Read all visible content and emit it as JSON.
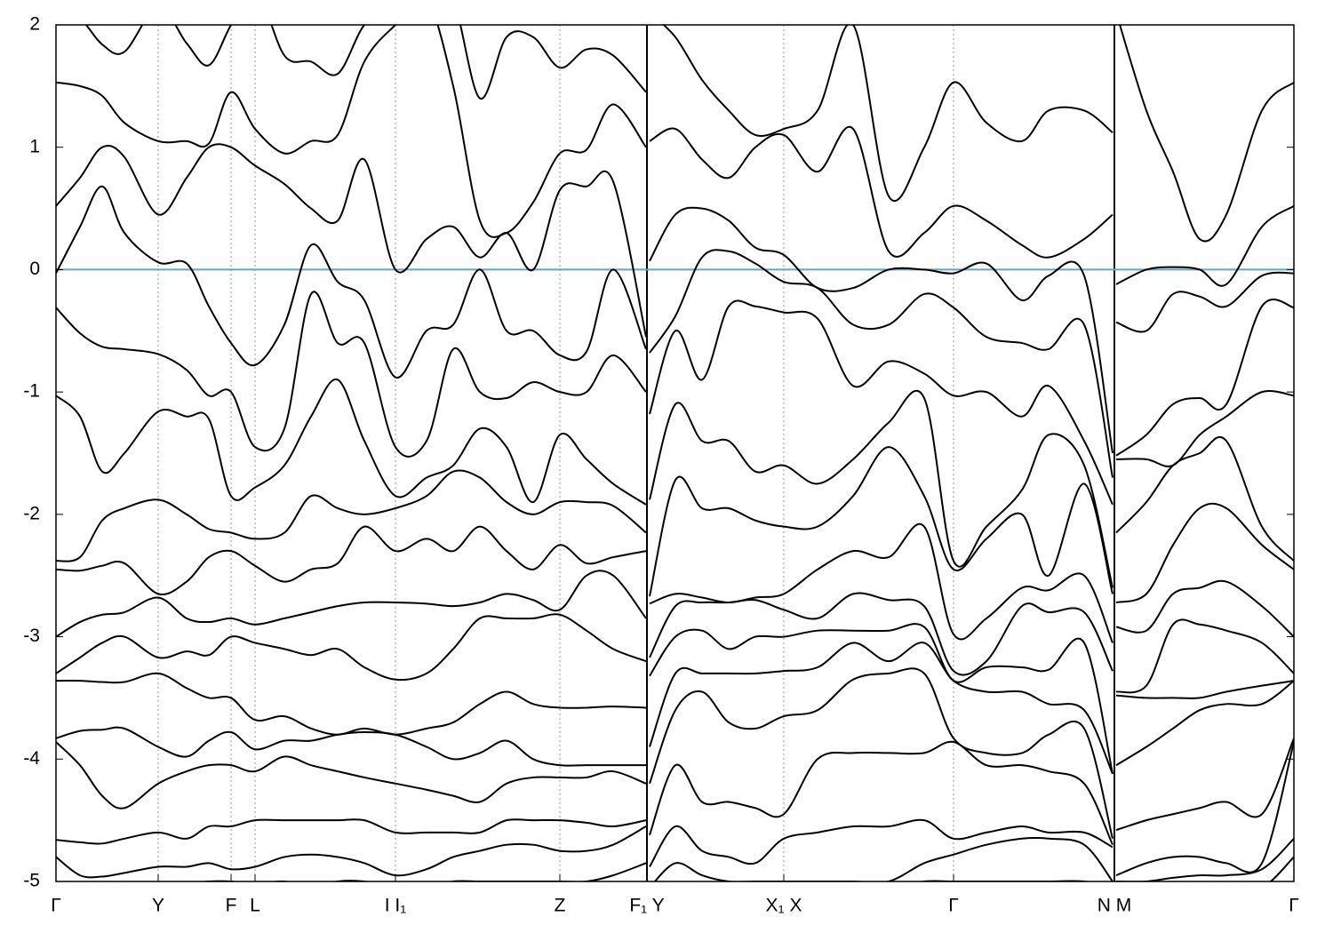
{
  "chart_data": {
    "type": "line",
    "x": [
      0,
      0.27,
      0.52,
      0.77,
      1.15,
      1.47,
      1.72,
      1.97,
      2.24,
      2.57,
      2.87,
      3.17,
      3.47,
      3.82,
      4.17,
      4.47,
      4.77,
      5.07,
      5.37,
      5.67,
      5.97,
      6.27,
      6.64,
      6.65,
      6.68,
      6.97,
      7.27,
      7.57,
      7.87,
      8.19,
      8.57,
      8.97,
      9.37,
      9.77,
      10.1,
      10.47,
      10.87,
      11.17,
      11.57,
      11.89,
      11.91,
      11.93,
      12.27,
      12.57,
      12.87,
      13.17,
      13.57,
      13.93
    ],
    "series": [
      {
        "color": "#000000",
        "values": [
          2.1,
          2.05,
          1.84,
          1.78,
          2.15,
          1.85,
          1.67,
          2.0,
          2.3,
          1.75,
          1.7,
          1.6,
          2.0,
          2.2,
          2.3,
          2.2,
          1.4,
          1.9,
          1.9,
          1.65,
          1.8,
          1.75,
          1.45,
          null,
          2.1,
          1.9,
          1.55,
          1.3,
          1.1,
          1.15,
          1.3,
          2.0,
          0.6,
          1.0,
          1.53,
          1.2,
          1.05,
          1.3,
          1.3,
          1.12,
          null,
          2.1,
          1.3,
          0.8,
          0.25,
          0.45,
          1.3,
          1.53
        ]
      },
      {
        "color": "#000000",
        "values": [
          1.53,
          1.5,
          1.42,
          1.2,
          1.05,
          1.05,
          1.03,
          1.45,
          1.15,
          0.95,
          1.05,
          1.1,
          1.7,
          2.0,
          2.2,
          1.5,
          0.4,
          0.3,
          0.55,
          0.95,
          0.98,
          1.35,
          1.0,
          null,
          1.05,
          1.15,
          0.9,
          0.75,
          1.0,
          1.1,
          0.8,
          1.15,
          0.15,
          0.3,
          0.52,
          0.4,
          0.2,
          0.1,
          0.25,
          0.45,
          null,
          -0.12,
          0.0,
          0.02,
          0.0,
          -0.12,
          0.35,
          0.52
        ]
      },
      {
        "color": "#000000",
        "values": [
          0.52,
          0.75,
          1.0,
          0.92,
          0.45,
          0.75,
          1.0,
          1.0,
          0.85,
          0.7,
          0.5,
          0.4,
          0.9,
          0.0,
          0.25,
          0.35,
          0.1,
          0.3,
          0.0,
          0.65,
          0.68,
          0.72,
          -0.55,
          null,
          0.07,
          0.45,
          0.5,
          0.4,
          0.18,
          0.12,
          -0.15,
          -0.15,
          0.0,
          0.0,
          -0.03,
          0.05,
          -0.25,
          -0.05,
          -0.05,
          -1.5,
          null,
          -0.43,
          -0.5,
          -0.2,
          -0.22,
          -0.3,
          -0.05,
          -0.03
        ]
      },
      {
        "color": "#000000",
        "values": [
          -0.03,
          0.35,
          0.68,
          0.3,
          0.06,
          0.05,
          -0.3,
          -0.6,
          -0.78,
          -0.45,
          0.2,
          -0.1,
          -0.25,
          -0.88,
          -0.5,
          -0.45,
          0.0,
          -0.5,
          -0.5,
          -0.7,
          -0.67,
          0.0,
          -0.65,
          null,
          -0.68,
          -0.38,
          0.1,
          0.15,
          0.05,
          -0.1,
          -0.15,
          -0.45,
          -0.45,
          -0.2,
          -0.31,
          -0.55,
          -0.6,
          -0.65,
          -0.45,
          -1.7,
          null,
          -1.52,
          -1.35,
          -1.1,
          -1.05,
          -1.1,
          -0.3,
          -0.31
        ]
      },
      {
        "color": "#000000",
        "values": [
          -0.31,
          -0.52,
          -0.63,
          -0.65,
          -0.69,
          -0.82,
          -1.03,
          -1.0,
          -1.45,
          -1.3,
          -0.2,
          -0.6,
          -0.6,
          -1.45,
          -1.4,
          -0.65,
          -1.0,
          -1.05,
          -0.92,
          -1.0,
          -1.0,
          -0.7,
          -1.0,
          null,
          -1.18,
          -0.5,
          -0.9,
          -0.3,
          -0.3,
          -0.35,
          -0.4,
          -0.95,
          -0.75,
          -0.85,
          -1.03,
          -1.0,
          -1.2,
          -0.95,
          -1.4,
          -1.92,
          null,
          -1.55,
          -1.55,
          -1.6,
          -1.35,
          -1.2,
          -1.0,
          -1.03
        ]
      },
      {
        "color": "#000000",
        "values": [
          -1.03,
          -1.2,
          -1.65,
          -1.5,
          -1.16,
          -1.2,
          -1.22,
          -1.85,
          -1.78,
          -1.6,
          -1.2,
          -0.9,
          -1.4,
          -1.85,
          -1.7,
          -1.6,
          -1.3,
          -1.45,
          -1.9,
          -1.35,
          -1.55,
          -1.75,
          -1.92,
          null,
          -1.88,
          -1.1,
          -1.4,
          -1.4,
          -1.65,
          -1.6,
          -1.75,
          -1.55,
          -1.25,
          -1.05,
          -2.38,
          -2.1,
          -1.8,
          -1.35,
          -1.6,
          -2.6,
          null,
          -2.15,
          -1.9,
          -1.6,
          -1.5,
          -1.4,
          -2.1,
          -2.38
        ]
      },
      {
        "color": "#000000",
        "values": [
          -2.38,
          -2.35,
          -2.05,
          -1.95,
          -1.88,
          -2.0,
          -2.12,
          -2.15,
          -2.2,
          -2.15,
          -1.85,
          -1.95,
          -2.0,
          -1.95,
          -1.85,
          -1.65,
          -1.7,
          -1.9,
          -2.0,
          -1.9,
          -1.9,
          -1.93,
          -2.15,
          null,
          -2.67,
          -1.72,
          -1.95,
          -1.95,
          -2.05,
          -2.1,
          -2.1,
          -1.85,
          -1.45,
          -1.85,
          -2.45,
          -2.2,
          -2.0,
          -2.5,
          -1.75,
          -2.65,
          null,
          -2.72,
          -2.65,
          -2.25,
          -1.95,
          -1.95,
          -2.25,
          -2.45
        ]
      },
      {
        "color": "#000000",
        "values": [
          -2.45,
          -2.46,
          -2.42,
          -2.4,
          -2.65,
          -2.55,
          -2.35,
          -2.3,
          -2.42,
          -2.55,
          -2.45,
          -2.4,
          -2.1,
          -2.3,
          -2.2,
          -2.3,
          -2.1,
          -2.3,
          -2.45,
          -2.25,
          -2.4,
          -2.35,
          -2.3,
          null,
          -2.73,
          -2.65,
          -2.68,
          -2.72,
          -2.68,
          -2.65,
          -2.45,
          -2.3,
          -2.35,
          -2.1,
          -2.98,
          -2.85,
          -2.6,
          -2.62,
          -2.5,
          -3.05,
          null,
          -2.92,
          -2.95,
          -2.65,
          -2.6,
          -2.55,
          -2.75,
          -3.0
        ]
      },
      {
        "color": "#000000",
        "values": [
          -3.0,
          -2.88,
          -2.82,
          -2.8,
          -2.68,
          -2.85,
          -2.88,
          -2.85,
          -2.9,
          -2.85,
          -2.8,
          -2.75,
          -2.72,
          -2.72,
          -2.73,
          -2.75,
          -2.72,
          -2.65,
          -2.7,
          -2.78,
          -2.5,
          -2.5,
          -2.85,
          null,
          -3.17,
          -2.75,
          -2.72,
          -2.72,
          -2.7,
          -2.78,
          -2.85,
          -2.65,
          -2.7,
          -2.75,
          -3.28,
          -3.2,
          -2.75,
          -2.8,
          -2.8,
          -3.28,
          null,
          -3.45,
          -3.4,
          -2.9,
          -2.9,
          -2.95,
          -3.05,
          -3.3
        ]
      },
      {
        "color": "#000000",
        "values": [
          -3.3,
          -3.17,
          -3.05,
          -3.0,
          -3.17,
          -3.12,
          -3.15,
          -3.0,
          -3.05,
          -3.1,
          -3.15,
          -3.1,
          -3.25,
          -3.35,
          -3.3,
          -3.1,
          -2.85,
          -2.85,
          -2.85,
          -2.82,
          -2.95,
          -3.1,
          -3.2,
          null,
          -3.32,
          -3.0,
          -2.95,
          -3.1,
          -3.0,
          -3.0,
          -2.95,
          -2.95,
          -2.95,
          -2.92,
          -3.36,
          -3.25,
          -3.25,
          -3.27,
          -3.05,
          -4.12,
          null,
          -3.48,
          -3.5,
          -3.5,
          -3.5,
          -3.45,
          -3.4,
          -3.36
        ]
      },
      {
        "color": "#000000",
        "values": [
          -3.36,
          -3.36,
          -3.37,
          -3.37,
          -3.3,
          -3.42,
          -3.5,
          -3.5,
          -3.68,
          -3.65,
          -3.75,
          -3.8,
          -3.75,
          -3.8,
          -3.75,
          -3.7,
          -3.55,
          -3.45,
          -3.55,
          -3.58,
          -3.58,
          -3.57,
          -3.58,
          null,
          -3.9,
          -3.3,
          -3.3,
          -3.3,
          -3.3,
          -3.28,
          -3.25,
          -3.05,
          -3.2,
          -3.05,
          -3.36,
          -3.45,
          -3.45,
          -3.55,
          -3.6,
          -4.12,
          null,
          -4.05,
          -3.9,
          -3.75,
          -3.6,
          -3.55,
          -3.55,
          -3.36
        ]
      },
      {
        "color": "#000000",
        "values": [
          -3.83,
          -3.77,
          -3.76,
          -3.75,
          -3.9,
          -3.98,
          -3.85,
          -3.78,
          -3.92,
          -3.85,
          -3.85,
          -3.8,
          -3.78,
          -3.8,
          -3.9,
          -4.0,
          -3.95,
          -3.85,
          -4.0,
          -4.05,
          -4.05,
          -4.05,
          -4.05,
          null,
          -4.2,
          -3.6,
          -3.45,
          -3.7,
          -3.75,
          -3.65,
          -3.6,
          -3.35,
          -3.3,
          -3.3,
          -3.83,
          -3.95,
          -3.95,
          -3.8,
          -3.75,
          -4.65,
          null,
          -4.58,
          -4.5,
          -4.45,
          -4.4,
          -4.35,
          -4.45,
          -3.83
        ]
      },
      {
        "color": "#000000",
        "values": [
          -3.86,
          -4.05,
          -4.3,
          -4.4,
          -4.2,
          -4.1,
          -4.05,
          -4.05,
          -4.1,
          -3.98,
          -4.05,
          -4.1,
          -4.15,
          -4.2,
          -4.25,
          -4.3,
          -4.35,
          -4.2,
          -4.15,
          -4.15,
          -4.15,
          -4.1,
          -4.2,
          null,
          -4.62,
          -4.05,
          -4.35,
          -4.35,
          -4.4,
          -4.45,
          -4.0,
          -3.95,
          -3.95,
          -3.95,
          -3.86,
          -4.05,
          -4.05,
          -4.1,
          -4.2,
          -4.7,
          null,
          -4.95,
          -4.85,
          -4.8,
          -4.8,
          -4.85,
          -4.85,
          -3.86
        ]
      },
      {
        "color": "#000000",
        "values": [
          -4.66,
          -4.68,
          -4.69,
          -4.65,
          -4.6,
          -4.65,
          -4.55,
          -4.55,
          -4.5,
          -4.5,
          -4.5,
          -4.5,
          -4.5,
          -4.6,
          -4.6,
          -4.6,
          -4.6,
          -4.5,
          -4.5,
          -4.5,
          -4.52,
          -4.55,
          -4.5,
          null,
          -4.88,
          -4.55,
          -4.75,
          -4.8,
          -4.85,
          -4.65,
          -4.6,
          -4.55,
          -4.55,
          -4.5,
          -4.65,
          -4.6,
          -4.55,
          -4.6,
          -4.6,
          -4.72,
          null,
          -5.0,
          -5.0,
          -4.97,
          -4.95,
          -4.95,
          -4.9,
          -4.65
        ]
      },
      {
        "color": "#000000",
        "values": [
          -4.8,
          -4.95,
          -4.96,
          -4.93,
          -4.88,
          -4.88,
          -4.85,
          -4.9,
          -4.88,
          -4.8,
          -4.78,
          -4.8,
          -4.85,
          -4.95,
          -4.9,
          -4.8,
          -4.75,
          -4.7,
          -4.7,
          -4.75,
          -4.75,
          -4.7,
          -4.55,
          null,
          -5.05,
          -4.85,
          -4.95,
          -5.0,
          -5.0,
          -5.0,
          -5.0,
          -5.0,
          -5.0,
          -4.85,
          -4.78,
          -4.7,
          -4.65,
          -4.65,
          -4.7,
          -5.0,
          null,
          -5.05,
          -5.05,
          -5.05,
          -5.05,
          -5.05,
          -5.05,
          -4.8
        ]
      },
      {
        "color": "#000000",
        "values": [
          -5.05,
          -5.1,
          -5.1,
          -5.1,
          -5.05,
          -5.02,
          -5.0,
          -5.0,
          -5.02,
          -5.0,
          -5.05,
          -5.0,
          -5.0,
          -5.05,
          -5.05,
          -5.0,
          -5.0,
          -5.0,
          -5.0,
          -5.0,
          -5.0,
          -4.95,
          -4.85,
          null,
          -5.1,
          -5.05,
          -5.1,
          -5.1,
          -5.1,
          -5.1,
          -5.05,
          -5.05,
          -5.05,
          -5.0,
          -5.0,
          -5.0,
          -5.0,
          -5.0,
          -5.0,
          -5.05,
          null,
          -5.1,
          -5.1,
          -5.1,
          -5.1,
          -5.1,
          -5.1,
          -5.05
        ]
      }
    ],
    "xlim": [
      0,
      13.93
    ],
    "ylim": [
      -5,
      2
    ],
    "xticks": [
      {
        "value": 0,
        "label": "Γ"
      },
      {
        "value": 1.15,
        "label": "Y"
      },
      {
        "value": 1.97,
        "label": "F"
      },
      {
        "value": 2.24,
        "label": "L"
      },
      {
        "value": 3.82,
        "label": "I  I₁"
      },
      {
        "value": 5.67,
        "label": "Z"
      },
      {
        "value": 6.65,
        "label": "F₁ Y"
      },
      {
        "value": 8.19,
        "label": "X₁ X"
      },
      {
        "value": 10.1,
        "label": "Γ"
      },
      {
        "value": 11.91,
        "label": "N M"
      },
      {
        "value": 13.93,
        "label": "Γ"
      }
    ],
    "yticks": [
      -5,
      -4,
      -3,
      -2,
      -1,
      0,
      1,
      2
    ],
    "grid": "x",
    "reference_line": {
      "value": 0,
      "color": "#5aa9c8"
    }
  }
}
